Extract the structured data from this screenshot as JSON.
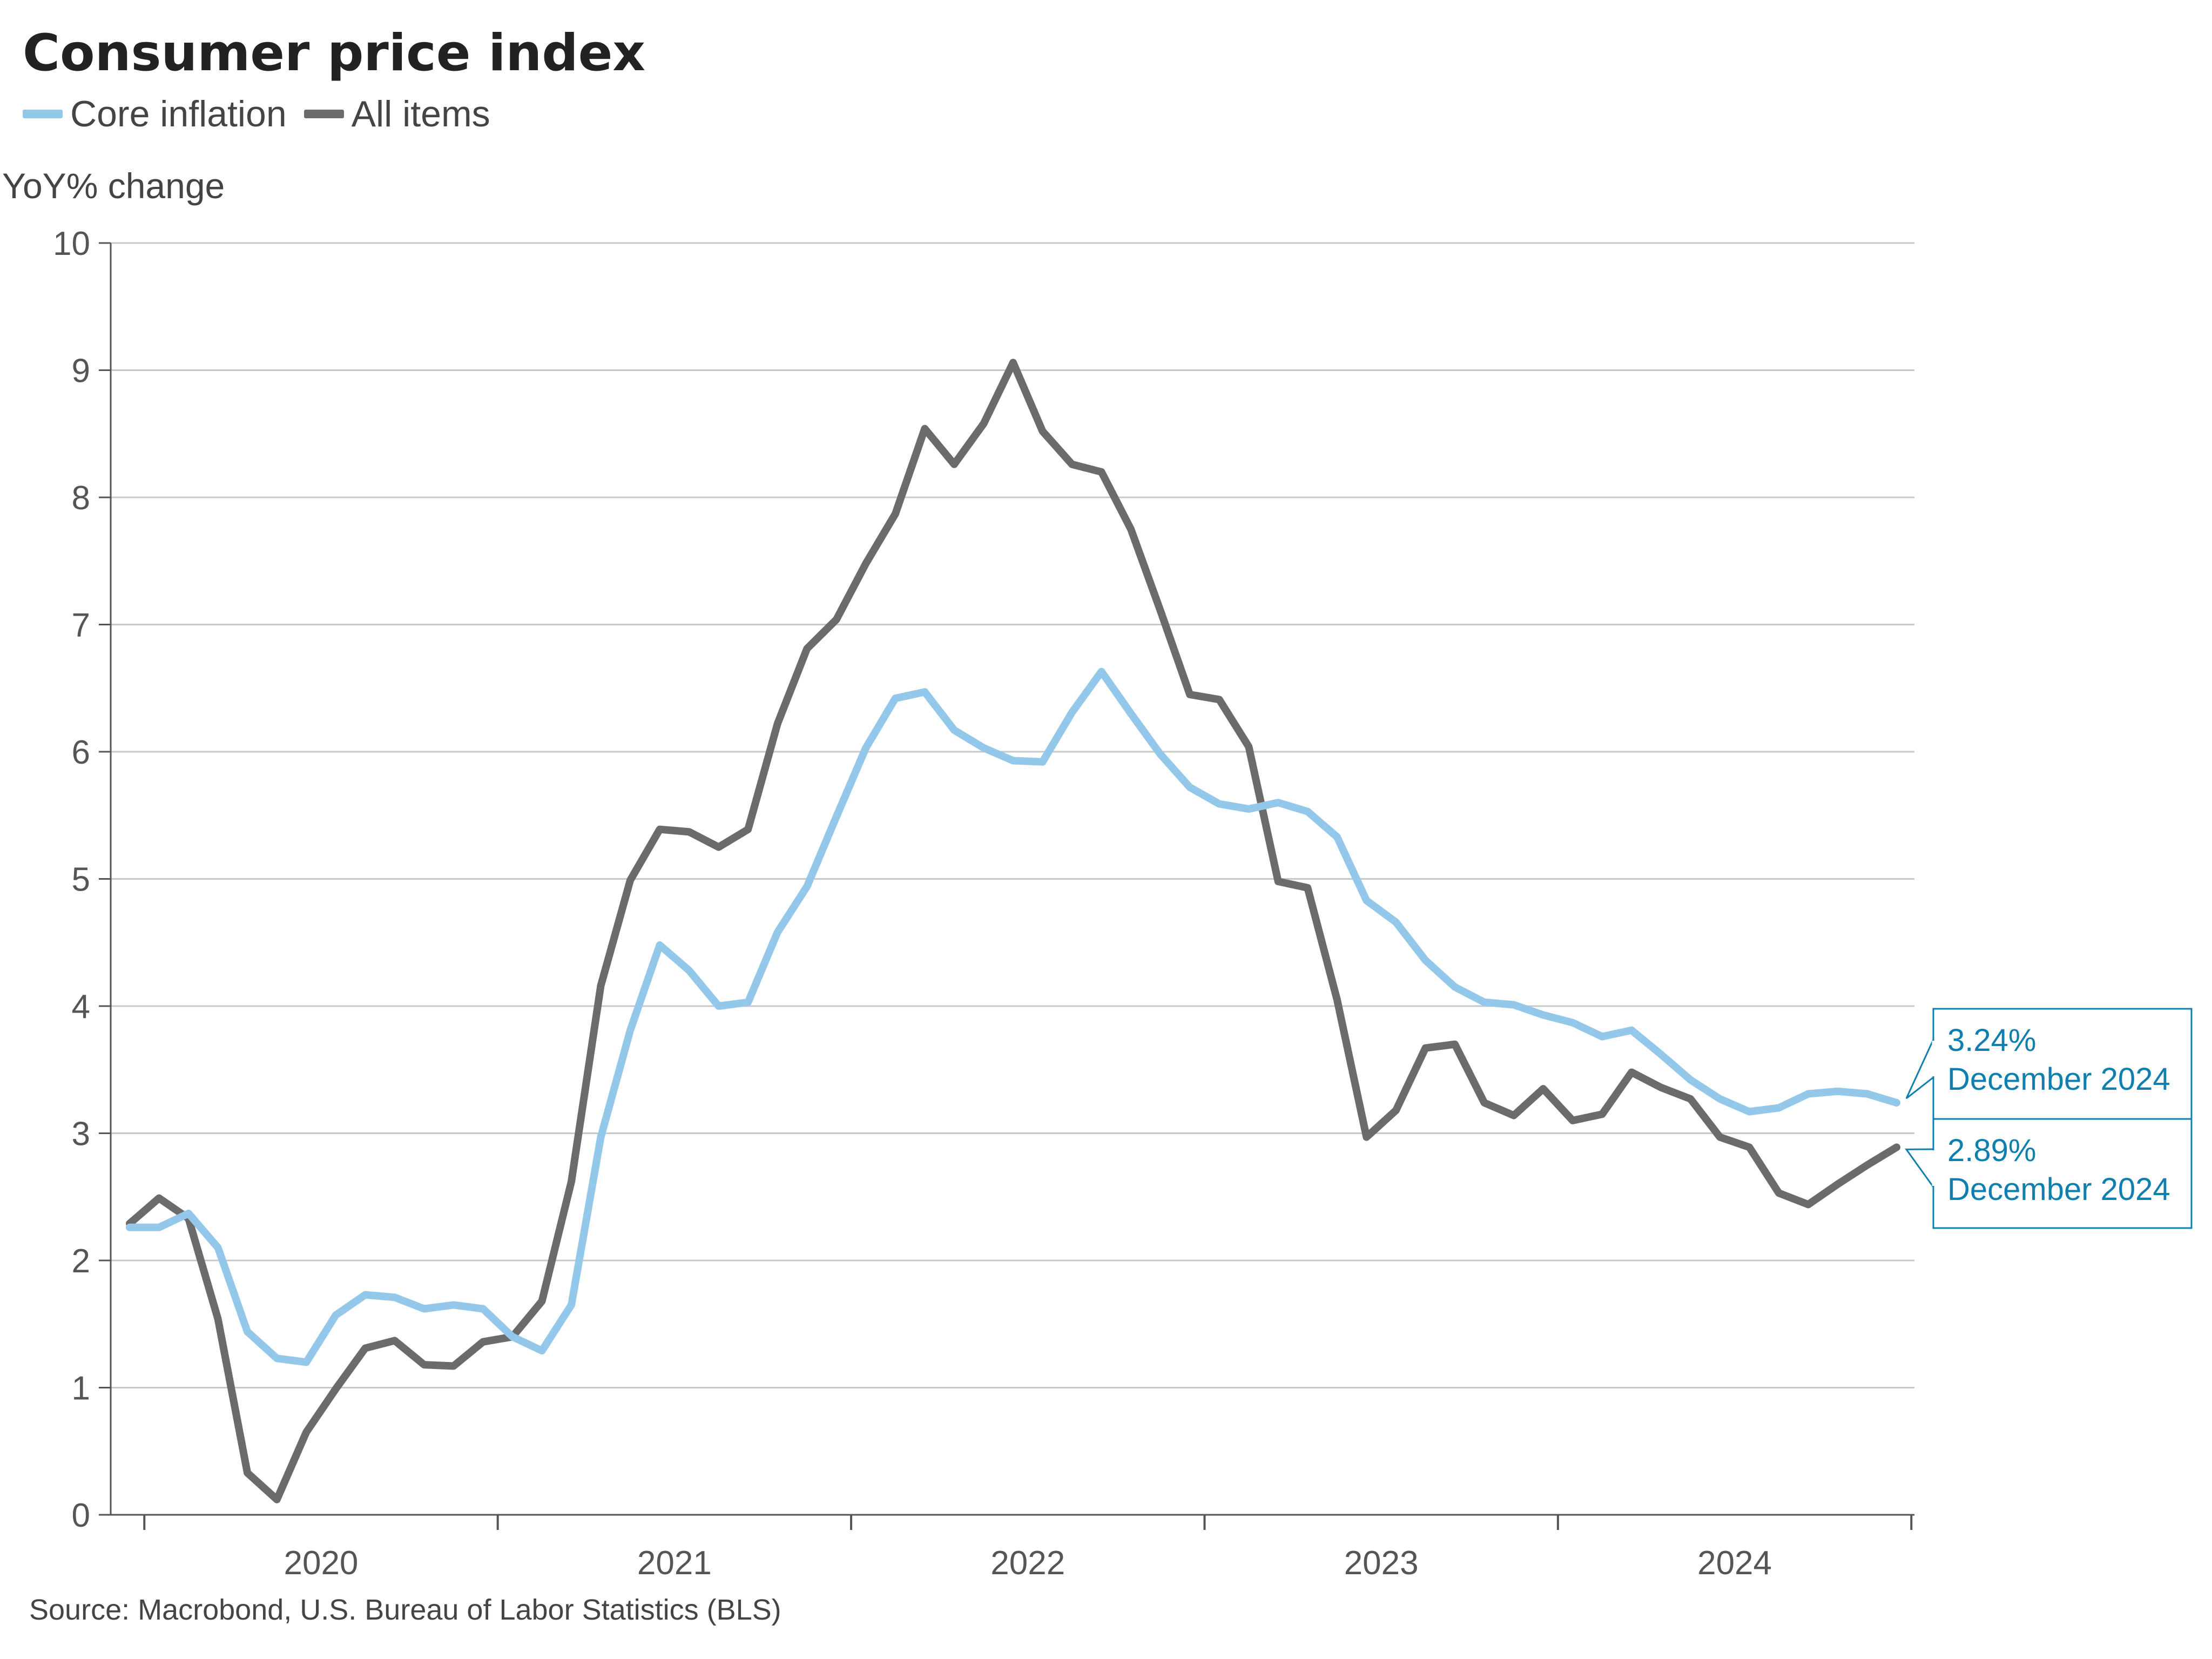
{
  "chart_data": {
    "type": "line",
    "title": "Consumer price index",
    "ylabel": "YoY% change",
    "xlabel": "",
    "ylim": [
      0,
      10
    ],
    "yticks": [
      0,
      1,
      2,
      3,
      4,
      5,
      6,
      7,
      8,
      9,
      10
    ],
    "xrange": [
      "2019-12",
      "2024-12"
    ],
    "xticks": [
      "2020",
      "2021",
      "2022",
      "2023",
      "2024"
    ],
    "grid": true,
    "legend_position": "top-left",
    "source": "Source: Macrobond, U.S. Bureau of Labor Statistics (BLS)",
    "series": [
      {
        "name": "Core inflation",
        "color": "#94c8ea",
        "x": [
          "2019-12",
          "2020-01",
          "2020-02",
          "2020-03",
          "2020-04",
          "2020-05",
          "2020-06",
          "2020-07",
          "2020-08",
          "2020-09",
          "2020-10",
          "2020-11",
          "2020-12",
          "2021-01",
          "2021-02",
          "2021-03",
          "2021-04",
          "2021-05",
          "2021-06",
          "2021-07",
          "2021-08",
          "2021-09",
          "2021-10",
          "2021-11",
          "2021-12",
          "2022-01",
          "2022-02",
          "2022-03",
          "2022-04",
          "2022-05",
          "2022-06",
          "2022-07",
          "2022-08",
          "2022-09",
          "2022-10",
          "2022-11",
          "2022-12",
          "2023-01",
          "2023-02",
          "2023-03",
          "2023-04",
          "2023-05",
          "2023-06",
          "2023-07",
          "2023-08",
          "2023-09",
          "2023-10",
          "2023-11",
          "2023-12",
          "2024-01",
          "2024-02",
          "2024-03",
          "2024-04",
          "2024-05",
          "2024-06",
          "2024-07",
          "2024-08",
          "2024-09",
          "2024-10",
          "2024-11",
          "2024-12"
        ],
        "values": [
          2.26,
          2.26,
          2.37,
          2.1,
          1.44,
          1.23,
          1.2,
          1.57,
          1.73,
          1.71,
          1.62,
          1.65,
          1.62,
          1.4,
          1.29,
          1.65,
          2.97,
          3.81,
          4.48,
          4.28,
          4.0,
          4.03,
          4.58,
          4.94,
          5.49,
          6.03,
          6.42,
          6.47,
          6.17,
          6.03,
          5.93,
          5.92,
          6.31,
          6.63,
          6.3,
          5.98,
          5.72,
          5.59,
          5.55,
          5.6,
          5.53,
          5.33,
          4.83,
          4.66,
          4.36,
          4.15,
          4.03,
          4.01,
          3.93,
          3.87,
          3.76,
          3.81,
          3.62,
          3.42,
          3.27,
          3.17,
          3.2,
          3.31,
          3.33,
          3.31,
          3.24
        ]
      },
      {
        "name": "All items",
        "color": "#6b6b6b",
        "x": [
          "2019-12",
          "2020-01",
          "2020-02",
          "2020-03",
          "2020-04",
          "2020-05",
          "2020-06",
          "2020-07",
          "2020-08",
          "2020-09",
          "2020-10",
          "2020-11",
          "2020-12",
          "2021-01",
          "2021-02",
          "2021-03",
          "2021-04",
          "2021-05",
          "2021-06",
          "2021-07",
          "2021-08",
          "2021-09",
          "2021-10",
          "2021-11",
          "2021-12",
          "2022-01",
          "2022-02",
          "2022-03",
          "2022-04",
          "2022-05",
          "2022-06",
          "2022-07",
          "2022-08",
          "2022-09",
          "2022-10",
          "2022-11",
          "2022-12",
          "2023-01",
          "2023-02",
          "2023-03",
          "2023-04",
          "2023-05",
          "2023-06",
          "2023-07",
          "2023-08",
          "2023-09",
          "2023-10",
          "2023-11",
          "2023-12",
          "2024-01",
          "2024-02",
          "2024-03",
          "2024-04",
          "2024-05",
          "2024-06",
          "2024-07",
          "2024-08",
          "2024-09",
          "2024-10",
          "2024-11",
          "2024-12"
        ],
        "values": [
          2.29,
          2.49,
          2.33,
          1.54,
          0.33,
          0.12,
          0.65,
          0.99,
          1.31,
          1.37,
          1.18,
          1.17,
          1.36,
          1.4,
          1.68,
          2.62,
          4.16,
          4.99,
          5.39,
          5.37,
          5.25,
          5.39,
          6.22,
          6.81,
          7.04,
          7.48,
          7.87,
          8.54,
          8.26,
          8.58,
          9.06,
          8.52,
          8.26,
          8.2,
          7.75,
          7.11,
          6.45,
          6.41,
          6.04,
          4.98,
          4.93,
          4.05,
          2.97,
          3.18,
          3.67,
          3.7,
          3.24,
          3.14,
          3.35,
          3.1,
          3.15,
          3.48,
          3.36,
          3.27,
          2.97,
          2.89,
          2.53,
          2.44,
          2.6,
          2.75,
          2.89
        ]
      }
    ],
    "annotations": [
      {
        "series": "Core inflation",
        "lines": [
          "3.24%",
          "December 2024"
        ],
        "color": "#0f7fb0"
      },
      {
        "series": "All items",
        "lines": [
          "2.89%",
          "December 2024"
        ],
        "color": "#0f7fb0"
      }
    ]
  }
}
